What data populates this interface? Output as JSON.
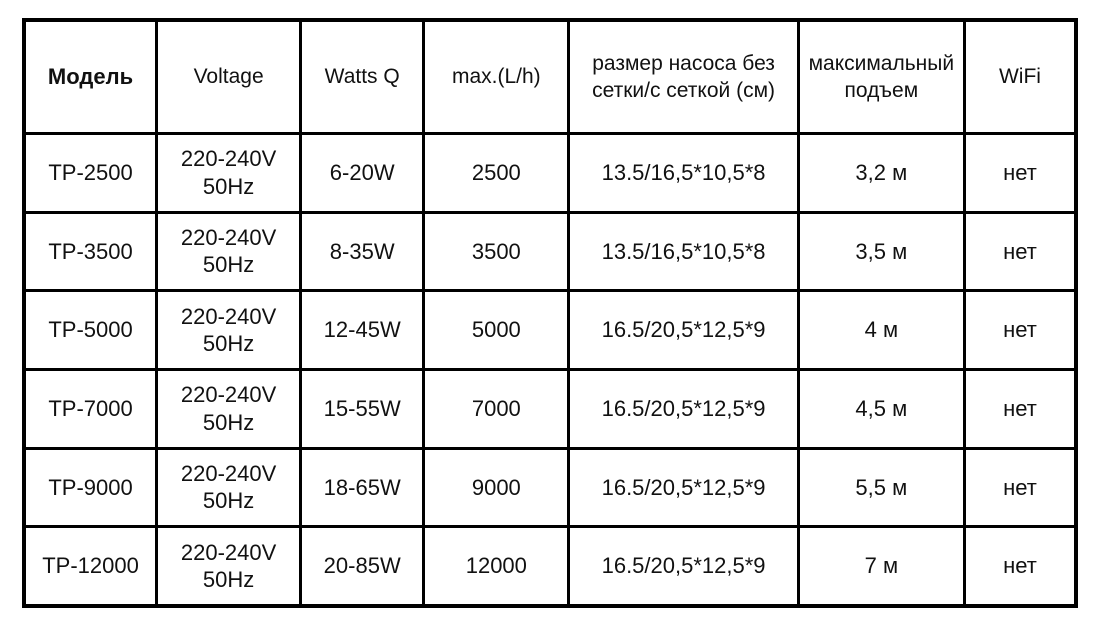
{
  "page": {
    "background_color": "#ffffff",
    "border_color": "#000000",
    "text_color": "#111111"
  },
  "table": {
    "columns": [
      "Модель",
      "Voltage",
      "Watts Q",
      "max.(L/h)",
      "размер насоса без сетки/с сеткой (см)",
      "максимальный подъем",
      "WiFi"
    ],
    "rows": [
      [
        "TP-2500",
        "220-240V\n50Hz",
        "6-20W",
        "2500",
        "13.5/16,5*10,5*8",
        "3,2 м",
        "нет"
      ],
      [
        "TP-3500",
        "220-240V\n50Hz",
        "8-35W",
        "3500",
        "13.5/16,5*10,5*8",
        "3,5 м",
        "нет"
      ],
      [
        "TP-5000",
        "220-240V\n50Hz",
        "12-45W",
        "5000",
        "16.5/20,5*12,5*9",
        "4 м",
        "нет"
      ],
      [
        "TP-7000",
        "220-240V\n50Hz",
        "15-55W",
        "7000",
        "16.5/20,5*12,5*9",
        "4,5 м",
        "нет"
      ],
      [
        "TP-9000",
        "220-240V\n50Hz",
        "18-65W",
        "9000",
        "16.5/20,5*12,5*9",
        "5,5 м",
        "нет"
      ],
      [
        "TP-12000",
        "220-240V\n50Hz",
        "20-85W",
        "12000",
        "16.5/20,5*12,5*9",
        "7 м",
        "нет"
      ]
    ]
  },
  "chart_data": {
    "type": "table",
    "title": "",
    "columns": [
      "Модель",
      "Voltage",
      "Watts Q",
      "max.(L/h)",
      "размер насоса без сетки/с сеткой (см)",
      "максимальный подъем",
      "WiFi"
    ],
    "rows": [
      [
        "TP-2500",
        "220-240V 50Hz",
        "6-20W",
        "2500",
        "13.5/16,5*10,5*8",
        "3,2 м",
        "нет"
      ],
      [
        "TP-3500",
        "220-240V 50Hz",
        "8-35W",
        "3500",
        "13.5/16,5*10,5*8",
        "3,5 м",
        "нет"
      ],
      [
        "TP-5000",
        "220-240V 50Hz",
        "12-45W",
        "5000",
        "16.5/20,5*12,5*9",
        "4 м",
        "нет"
      ],
      [
        "TP-7000",
        "220-240V 50Hz",
        "15-55W",
        "7000",
        "16.5/20,5*12,5*9",
        "4,5 м",
        "нет"
      ],
      [
        "TP-9000",
        "220-240V 50Hz",
        "18-65W",
        "9000",
        "16.5/20,5*12,5*9",
        "5,5 м",
        "нет"
      ],
      [
        "TP-12000",
        "220-240V 50Hz",
        "20-85W",
        "12000",
        "16.5/20,5*12,5*9",
        "7 м",
        "нет"
      ]
    ]
  }
}
